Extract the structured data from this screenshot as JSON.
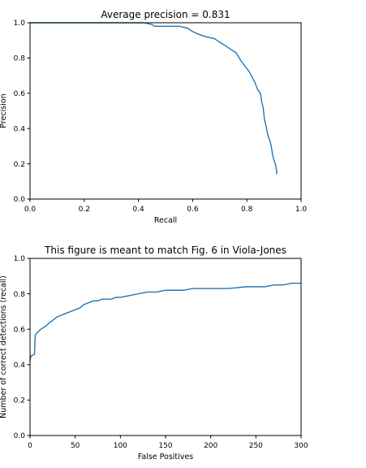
{
  "chart_data": [
    {
      "type": "line",
      "title": "Average precision = 0.831",
      "xlabel": "Recall",
      "ylabel": "Precision",
      "xlim": [
        0,
        1
      ],
      "ylim": [
        0,
        1
      ],
      "xticks": [
        0,
        0.2,
        0.4,
        0.6,
        0.8,
        1.0
      ],
      "xtick_labels": [
        "0.0",
        "0.2",
        "0.4",
        "0.6",
        "0.8",
        "1.0"
      ],
      "yticks": [
        0,
        0.2,
        0.4,
        0.6,
        0.8,
        1.0
      ],
      "ytick_labels": [
        "0.0",
        "0.2",
        "0.4",
        "0.6",
        "0.8",
        "1.0"
      ],
      "grid": false,
      "legend": "none",
      "series": [
        {
          "color": "#1f77b4",
          "x": [
            0.0,
            0.2,
            0.42,
            0.45,
            0.46,
            0.5,
            0.55,
            0.58,
            0.6,
            0.63,
            0.65,
            0.68,
            0.7,
            0.72,
            0.74,
            0.76,
            0.78,
            0.79,
            0.8,
            0.81,
            0.82,
            0.83,
            0.835,
            0.84,
            0.85,
            0.855,
            0.86,
            0.865,
            0.87,
            0.875,
            0.88,
            0.885,
            0.89,
            0.895,
            0.9,
            0.905,
            0.91,
            0.91
          ],
          "y": [
            1.0,
            1.0,
            1.0,
            0.99,
            0.98,
            0.98,
            0.98,
            0.97,
            0.95,
            0.93,
            0.92,
            0.91,
            0.89,
            0.87,
            0.85,
            0.83,
            0.78,
            0.76,
            0.74,
            0.72,
            0.69,
            0.66,
            0.64,
            0.62,
            0.6,
            0.55,
            0.52,
            0.45,
            0.42,
            0.38,
            0.35,
            0.33,
            0.3,
            0.25,
            0.22,
            0.2,
            0.16,
            0.14
          ]
        }
      ]
    },
    {
      "type": "line",
      "title": "This figure is meant to match Fig. 6 in Viola-Jones",
      "xlabel": "False Positives",
      "ylabel": "Number of correct detections (recall)",
      "xlim": [
        0,
        300
      ],
      "ylim": [
        0,
        1
      ],
      "xticks": [
        0,
        50,
        100,
        150,
        200,
        250,
        300
      ],
      "xtick_labels": [
        "0",
        "50",
        "100",
        "150",
        "200",
        "250",
        "300"
      ],
      "yticks": [
        0,
        0.2,
        0.4,
        0.6,
        0.8,
        1.0
      ],
      "ytick_labels": [
        "0.0",
        "0.2",
        "0.4",
        "0.6",
        "0.8",
        "1.0"
      ],
      "grid": false,
      "legend": "none",
      "series": [
        {
          "color": "#1f77b4",
          "x": [
            0,
            1,
            2,
            5,
            5.5,
            6,
            8,
            10,
            12,
            15,
            18,
            20,
            25,
            30,
            35,
            40,
            45,
            50,
            55,
            60,
            65,
            70,
            75,
            80,
            85,
            90,
            95,
            100,
            110,
            120,
            130,
            140,
            150,
            160,
            170,
            180,
            190,
            200,
            220,
            240,
            250,
            260,
            270,
            280,
            290,
            300
          ],
          "y": [
            0.42,
            0.45,
            0.45,
            0.46,
            0.54,
            0.57,
            0.58,
            0.59,
            0.6,
            0.61,
            0.62,
            0.63,
            0.65,
            0.67,
            0.68,
            0.69,
            0.7,
            0.71,
            0.72,
            0.74,
            0.75,
            0.76,
            0.76,
            0.77,
            0.77,
            0.77,
            0.78,
            0.78,
            0.79,
            0.8,
            0.81,
            0.81,
            0.82,
            0.82,
            0.82,
            0.83,
            0.83,
            0.83,
            0.83,
            0.84,
            0.84,
            0.84,
            0.85,
            0.85,
            0.86,
            0.86
          ]
        }
      ]
    }
  ]
}
